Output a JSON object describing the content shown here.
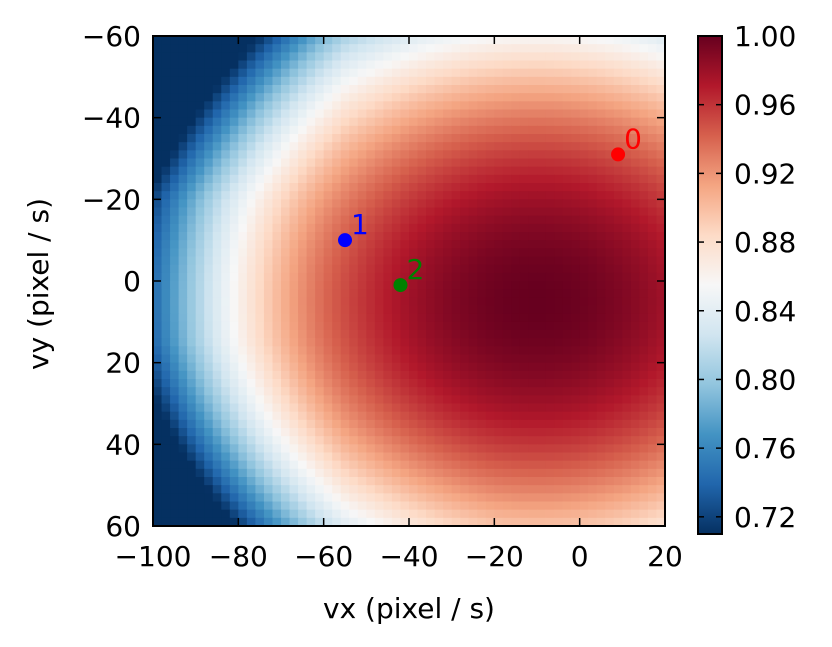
{
  "chart_data": {
    "type": "heatmap",
    "title": "",
    "xlabel": "vx (pixel / s)",
    "ylabel": "vy (pixel / s)",
    "xlim": [
      -100,
      20
    ],
    "ylim": [
      60,
      -60
    ],
    "x_ticks": [
      -100,
      -80,
      -60,
      -40,
      -20,
      0,
      20
    ],
    "x_tick_labels": [
      "−100",
      "−80",
      "−60",
      "−40",
      "−20",
      "0",
      "20"
    ],
    "y_ticks": [
      -60,
      -40,
      -20,
      0,
      20,
      40,
      60
    ],
    "y_tick_labels": [
      "−60",
      "−40",
      "−20",
      "0",
      "20",
      "40",
      "60"
    ],
    "colormap": "RdBu_r",
    "colorbar": {
      "range": [
        0.71,
        1.0
      ],
      "ticks": [
        0.72,
        0.76,
        0.8,
        0.84,
        0.88,
        0.92,
        0.96,
        1.0
      ],
      "tick_labels": [
        "0.72",
        "0.76",
        "0.80",
        "0.84",
        "0.88",
        "0.92",
        "0.96",
        "1.00"
      ]
    },
    "peak": {
      "vx": -10,
      "vy": 5,
      "value": 1.0
    },
    "points": [
      {
        "label": "0",
        "vx": 9,
        "vy": -31,
        "color": "#ff0000"
      },
      {
        "label": "1",
        "vx": -55,
        "vy": -10,
        "color": "#0000ff"
      },
      {
        "label": "2",
        "vx": -42,
        "vy": 1,
        "color": "#008000"
      }
    ]
  }
}
